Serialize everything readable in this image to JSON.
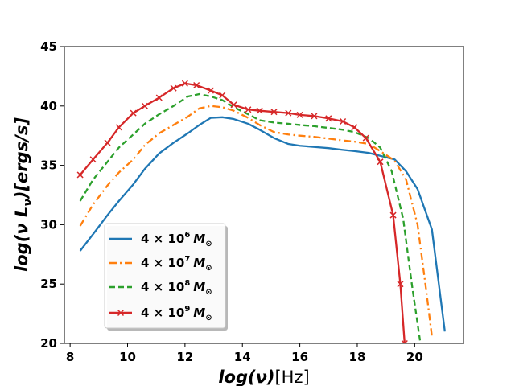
{
  "chart_data": {
    "type": "line",
    "xlabel": "log(ν)",
    "xlabel_unit": "[Hz]",
    "ylabel": "log(ν L",
    "ylabel_sub": "ν",
    "ylabel_tail": ")[ergs/s]",
    "xlim": [
      7.8,
      21.7
    ],
    "ylim": [
      20,
      45
    ],
    "xticks": [
      "8",
      "10",
      "12",
      "14",
      "16",
      "18",
      "20"
    ],
    "yticks": [
      "20",
      "25",
      "30",
      "35",
      "40",
      "45"
    ],
    "legend_position": "lower-left",
    "series": [
      {
        "name": "4 × 10⁶ M⊙",
        "legend_base": "4 × 10",
        "legend_exp": "6",
        "legend_sym": "M",
        "legend_subsym": "⊙",
        "color": "#1f77b4",
        "dash": "solid",
        "marker": "none",
        "x": [
          8.35,
          8.8,
          9.3,
          9.7,
          10.2,
          10.6,
          11.1,
          11.6,
          12.1,
          12.5,
          12.9,
          13.3,
          13.7,
          14.2,
          14.6,
          15.1,
          15.6,
          16.0,
          16.5,
          17.0,
          17.5,
          17.9,
          18.4,
          18.8,
          19.3,
          19.7,
          20.1,
          20.6,
          21.05
        ],
        "y": [
          27.8,
          29.2,
          30.8,
          32.0,
          33.4,
          34.7,
          36.0,
          36.9,
          37.7,
          38.4,
          39.0,
          39.05,
          38.9,
          38.5,
          38.0,
          37.3,
          36.8,
          36.65,
          36.55,
          36.45,
          36.3,
          36.2,
          36.05,
          35.8,
          35.5,
          34.5,
          33.0,
          29.6,
          21.0
        ]
      },
      {
        "name": "4 × 10⁷ M⊙",
        "legend_base": "4 × 10",
        "legend_exp": "7",
        "legend_sym": "M",
        "legend_subsym": "⊙",
        "color": "#ff7f0e",
        "dash": "dashdot",
        "marker": "none",
        "x": [
          8.35,
          8.8,
          9.3,
          9.7,
          10.2,
          10.6,
          11.1,
          11.6,
          12.1,
          12.5,
          12.9,
          13.3,
          13.7,
          14.2,
          14.6,
          15.1,
          15.6,
          16.0,
          16.5,
          17.0,
          17.5,
          17.9,
          18.4,
          18.8,
          19.3,
          19.7,
          20.1,
          20.4,
          20.6
        ],
        "y": [
          29.9,
          31.7,
          33.3,
          34.4,
          35.5,
          36.7,
          37.7,
          38.4,
          39.1,
          39.8,
          40.0,
          39.9,
          39.6,
          39.0,
          38.4,
          37.8,
          37.6,
          37.5,
          37.4,
          37.25,
          37.1,
          37.0,
          36.8,
          36.2,
          35.4,
          33.8,
          30.0,
          24.5,
          20.6
        ]
      },
      {
        "name": "4 × 10⁸ M⊙",
        "legend_base": "4 × 10",
        "legend_exp": "8",
        "legend_sym": "M",
        "legend_subsym": "⊙",
        "color": "#2ca02c",
        "dash": "dashed",
        "marker": "none",
        "x": [
          8.35,
          8.8,
          9.3,
          9.7,
          10.2,
          10.6,
          11.1,
          11.6,
          12.1,
          12.5,
          12.9,
          13.3,
          13.7,
          14.2,
          14.6,
          15.1,
          15.6,
          16.0,
          16.5,
          17.0,
          17.5,
          17.9,
          18.4,
          18.8,
          19.2,
          19.6,
          19.9,
          20.2
        ],
        "y": [
          32.0,
          33.8,
          35.3,
          36.5,
          37.6,
          38.5,
          39.3,
          40.0,
          40.8,
          41.0,
          40.8,
          40.5,
          39.9,
          39.3,
          38.8,
          38.6,
          38.5,
          38.4,
          38.3,
          38.15,
          38.0,
          37.8,
          37.3,
          36.5,
          34.5,
          30.5,
          25.0,
          20.0
        ]
      },
      {
        "name": "4 × 10⁹ M⊙",
        "legend_base": "4 × 10",
        "legend_exp": "9",
        "legend_sym": "M",
        "legend_subsym": "⊙",
        "color": "#d62728",
        "dash": "solid",
        "marker": "x",
        "x": [
          8.35,
          8.8,
          9.3,
          9.7,
          10.2,
          10.6,
          11.1,
          11.6,
          12.0,
          12.4,
          12.9,
          13.3,
          13.7,
          14.2,
          14.6,
          15.1,
          15.6,
          16.0,
          16.5,
          17.0,
          17.5,
          17.9,
          18.3,
          18.8,
          19.25,
          19.5,
          19.65
        ],
        "y": [
          34.2,
          35.5,
          36.9,
          38.2,
          39.4,
          40.0,
          40.7,
          41.5,
          41.9,
          41.75,
          41.3,
          40.9,
          40.1,
          39.7,
          39.6,
          39.5,
          39.4,
          39.25,
          39.15,
          38.95,
          38.7,
          38.2,
          37.3,
          35.3,
          30.8,
          25.0,
          20.0
        ]
      }
    ]
  }
}
